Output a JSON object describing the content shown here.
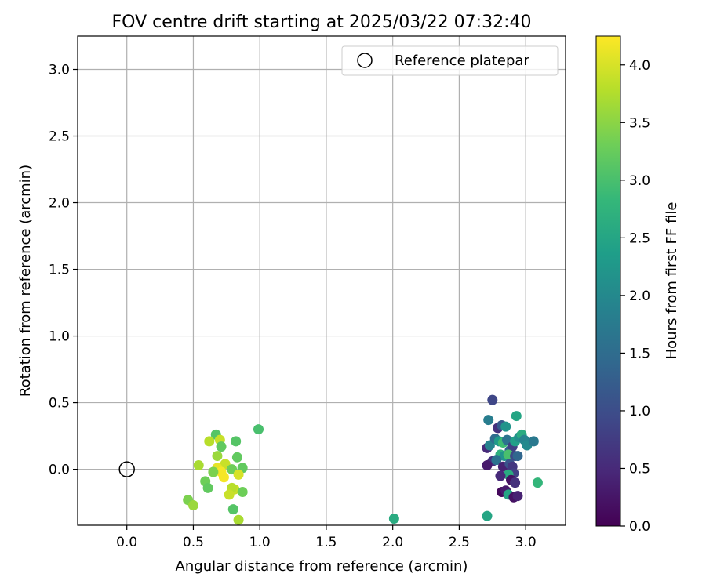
{
  "chart_data": {
    "type": "scatter",
    "title": "FOV centre drift starting at 2025/03/22 07:32:40",
    "xlabel": "Angular distance from reference (arcmin)",
    "ylabel": "Rotation from reference (arcmin)",
    "xlim": [
      -0.37,
      3.3
    ],
    "ylim": [
      -0.42,
      3.25
    ],
    "xticks": [
      0.0,
      0.5,
      1.0,
      1.5,
      2.0,
      2.5,
      3.0
    ],
    "yticks": [
      0.0,
      0.5,
      1.0,
      1.5,
      2.0,
      2.5,
      3.0
    ],
    "xtick_labels": [
      "0.0",
      "0.5",
      "1.0",
      "1.5",
      "2.0",
      "2.5",
      "3.0"
    ],
    "ytick_labels": [
      "0.0",
      "0.5",
      "1.0",
      "1.5",
      "2.0",
      "2.5",
      "3.0"
    ],
    "grid": true,
    "legend": {
      "label": "Reference platepar",
      "placement": "top-right"
    },
    "reference_point": {
      "x": 0.0,
      "y": 0.0
    },
    "colorbar": {
      "label": "Hours from first FF file",
      "colormap": "viridis",
      "range": [
        0.0,
        4.25
      ],
      "ticks": [
        0.0,
        0.5,
        1.0,
        1.5,
        2.0,
        2.5,
        3.0,
        3.5,
        4.0
      ],
      "tick_labels": [
        "0.0",
        "0.5",
        "1.0",
        "1.5",
        "2.0",
        "2.5",
        "3.0",
        "3.5",
        "4.0"
      ],
      "stops": [
        "#440154",
        "#482878",
        "#3e4a89",
        "#31688e",
        "#26828e",
        "#1f9e89",
        "#35b779",
        "#6ece58",
        "#b5de2b",
        "#fde725"
      ]
    },
    "series": [
      {
        "points": [
          {
            "x": 2.75,
            "y": 0.52,
            "t": 0.9
          },
          {
            "x": 2.72,
            "y": 0.37,
            "t": 1.8
          },
          {
            "x": 2.93,
            "y": 0.4,
            "t": 2.5
          },
          {
            "x": 2.79,
            "y": 0.31,
            "t": 0.6
          },
          {
            "x": 2.82,
            "y": 0.33,
            "t": 1.2
          },
          {
            "x": 2.85,
            "y": 0.32,
            "t": 2.2
          },
          {
            "x": 2.71,
            "y": 0.16,
            "t": 0.5
          },
          {
            "x": 2.73,
            "y": 0.18,
            "t": 1.9
          },
          {
            "x": 2.77,
            "y": 0.23,
            "t": 1.5
          },
          {
            "x": 2.8,
            "y": 0.21,
            "t": 2.3
          },
          {
            "x": 2.83,
            "y": 0.2,
            "t": 2.9
          },
          {
            "x": 2.86,
            "y": 0.22,
            "t": 1.6
          },
          {
            "x": 2.88,
            "y": 0.14,
            "t": 1.3
          },
          {
            "x": 2.9,
            "y": 0.17,
            "t": 0.8
          },
          {
            "x": 2.92,
            "y": 0.21,
            "t": 2.4
          },
          {
            "x": 2.95,
            "y": 0.24,
            "t": 2.1
          },
          {
            "x": 2.97,
            "y": 0.26,
            "t": 2.6
          },
          {
            "x": 2.99,
            "y": 0.22,
            "t": 1.9
          },
          {
            "x": 3.01,
            "y": 0.18,
            "t": 2.0
          },
          {
            "x": 3.06,
            "y": 0.21,
            "t": 1.7
          },
          {
            "x": 2.81,
            "y": 0.11,
            "t": 2.7
          },
          {
            "x": 2.84,
            "y": 0.1,
            "t": 2.2
          },
          {
            "x": 2.87,
            "y": 0.11,
            "t": 3.0
          },
          {
            "x": 2.92,
            "y": 0.1,
            "t": 0.9
          },
          {
            "x": 2.94,
            "y": 0.1,
            "t": 1.4
          },
          {
            "x": 2.75,
            "y": 0.06,
            "t": 0.6
          },
          {
            "x": 2.71,
            "y": 0.03,
            "t": 0.3
          },
          {
            "x": 2.78,
            "y": 0.07,
            "t": 1.6
          },
          {
            "x": 2.83,
            "y": 0.02,
            "t": 0.4
          },
          {
            "x": 2.88,
            "y": 0.04,
            "t": 1.1
          },
          {
            "x": 2.9,
            "y": 0.02,
            "t": 0.7
          },
          {
            "x": 2.91,
            "y": -0.03,
            "t": 0.8
          },
          {
            "x": 2.87,
            "y": -0.04,
            "t": 2.6
          },
          {
            "x": 2.81,
            "y": -0.05,
            "t": 0.5
          },
          {
            "x": 2.89,
            "y": -0.08,
            "t": 0.2
          },
          {
            "x": 2.92,
            "y": -0.1,
            "t": 0.6
          },
          {
            "x": 2.82,
            "y": -0.17,
            "t": 0.1
          },
          {
            "x": 2.85,
            "y": -0.16,
            "t": 0.3
          },
          {
            "x": 2.87,
            "y": -0.19,
            "t": 2.5
          },
          {
            "x": 2.91,
            "y": -0.21,
            "t": 0.2
          },
          {
            "x": 2.94,
            "y": -0.2,
            "t": 0.4
          },
          {
            "x": 3.09,
            "y": -0.1,
            "t": 2.8
          },
          {
            "x": 2.71,
            "y": -0.35,
            "t": 2.5
          },
          {
            "x": 2.01,
            "y": -0.37,
            "t": 2.6
          },
          {
            "x": 0.99,
            "y": 0.3,
            "t": 3.0
          },
          {
            "x": 0.67,
            "y": 0.26,
            "t": 3.1
          },
          {
            "x": 0.7,
            "y": 0.22,
            "t": 3.9
          },
          {
            "x": 0.62,
            "y": 0.21,
            "t": 3.8
          },
          {
            "x": 0.82,
            "y": 0.21,
            "t": 3.1
          },
          {
            "x": 0.71,
            "y": 0.17,
            "t": 3.2
          },
          {
            "x": 0.68,
            "y": 0.1,
            "t": 3.6
          },
          {
            "x": 0.83,
            "y": 0.09,
            "t": 3.2
          },
          {
            "x": 0.74,
            "y": 0.04,
            "t": 3.9
          },
          {
            "x": 0.54,
            "y": 0.03,
            "t": 3.7
          },
          {
            "x": 0.79,
            "y": 0.0,
            "t": 3.3
          },
          {
            "x": 0.87,
            "y": 0.01,
            "t": 3.2
          },
          {
            "x": 0.68,
            "y": 0.01,
            "t": 4.1
          },
          {
            "x": 0.71,
            "y": -0.02,
            "t": 4.2
          },
          {
            "x": 0.65,
            "y": -0.02,
            "t": 3.4
          },
          {
            "x": 0.73,
            "y": -0.06,
            "t": 4.2
          },
          {
            "x": 0.84,
            "y": -0.04,
            "t": 4.0
          },
          {
            "x": 0.59,
            "y": -0.09,
            "t": 3.3
          },
          {
            "x": 0.61,
            "y": -0.14,
            "t": 3.2
          },
          {
            "x": 0.81,
            "y": -0.15,
            "t": 3.9
          },
          {
            "x": 0.79,
            "y": -0.14,
            "t": 3.8
          },
          {
            "x": 0.77,
            "y": -0.19,
            "t": 3.9
          },
          {
            "x": 0.87,
            "y": -0.17,
            "t": 3.3
          },
          {
            "x": 0.8,
            "y": -0.3,
            "t": 3.1
          },
          {
            "x": 0.46,
            "y": -0.23,
            "t": 3.4
          },
          {
            "x": 0.5,
            "y": -0.27,
            "t": 3.6
          },
          {
            "x": 0.84,
            "y": -0.38,
            "t": 3.7
          }
        ]
      }
    ]
  }
}
